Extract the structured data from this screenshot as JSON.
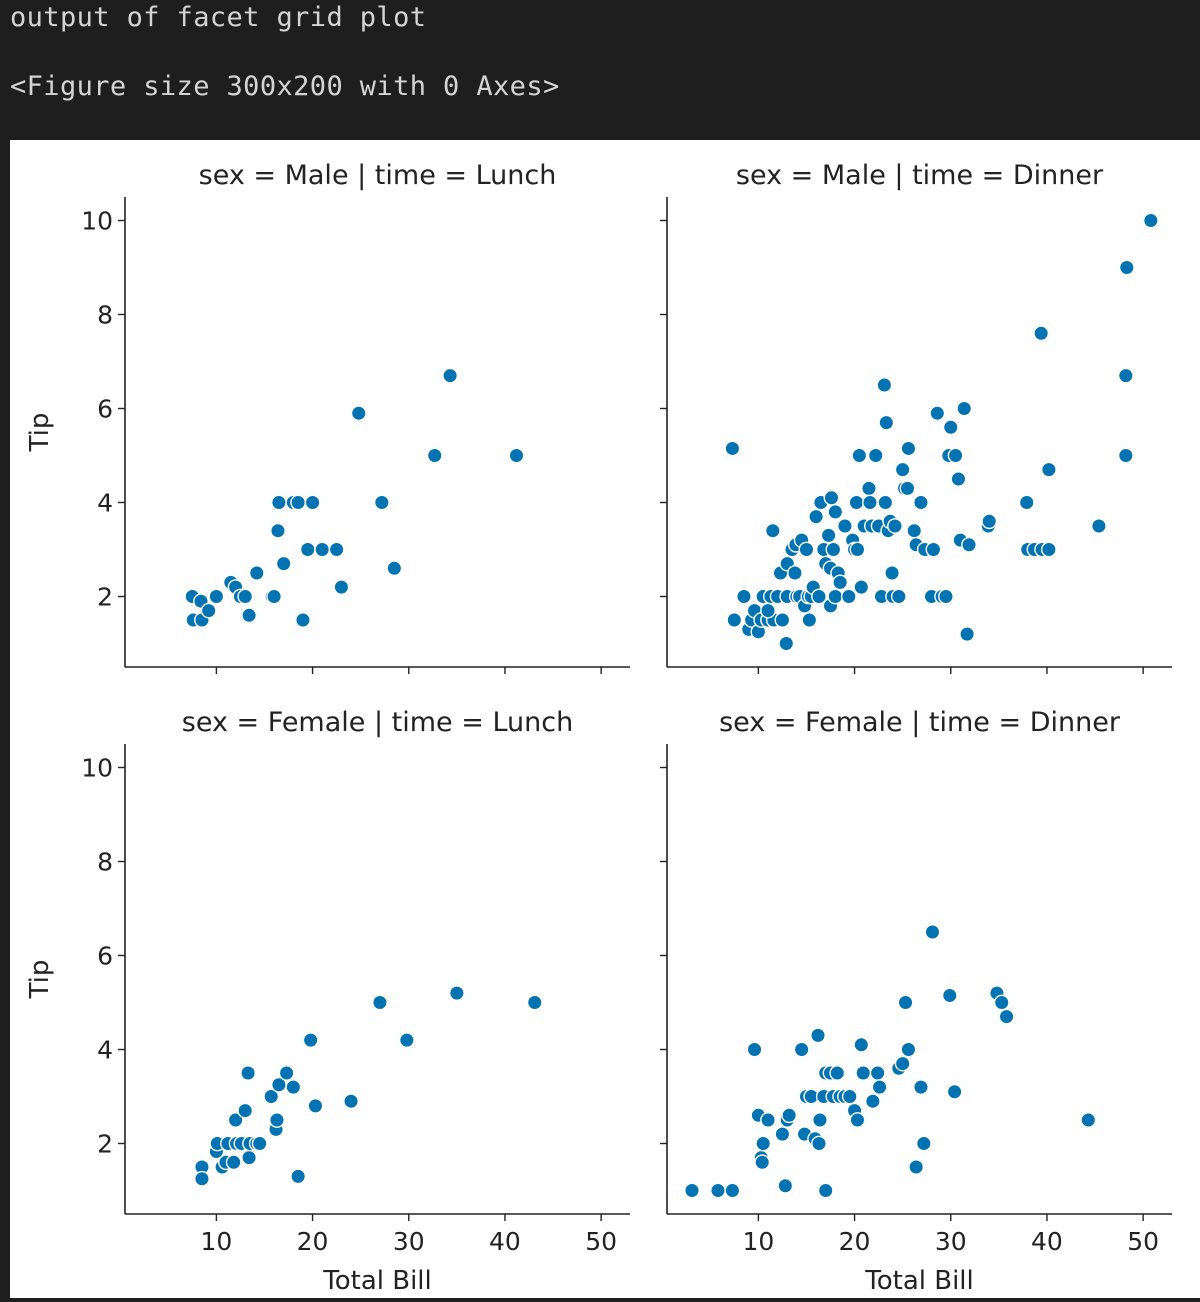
{
  "console": {
    "line1": "output of facet grid plot",
    "line2": "<Figure size 300x200 with 0 Axes>"
  },
  "chart_data": {
    "type": "scatter",
    "facet_rows": "sex",
    "facet_cols": "time",
    "xlabel": "Total Bill",
    "ylabel": "Tip",
    "xlim": [
      0.5,
      53
    ],
    "ylim": [
      0.5,
      10.5
    ],
    "xticks": [
      10,
      20,
      30,
      40,
      50
    ],
    "yticks": [
      2,
      4,
      6,
      8,
      10
    ],
    "marker_color": "#0173b2",
    "grid": false,
    "facets": [
      {
        "title": "sex = Male | time = Lunch",
        "points": [
          [
            7.5,
            2.0
          ],
          [
            7.6,
            1.5
          ],
          [
            8.4,
            1.9
          ],
          [
            8.5,
            1.5
          ],
          [
            9.2,
            1.7
          ],
          [
            10.0,
            2.0
          ],
          [
            11.5,
            2.3
          ],
          [
            12.0,
            2.2
          ],
          [
            12.5,
            2.0
          ],
          [
            13.0,
            2.0
          ],
          [
            13.4,
            1.6
          ],
          [
            14.2,
            2.5
          ],
          [
            15.8,
            2.0
          ],
          [
            16.0,
            2.0
          ],
          [
            16.4,
            3.4
          ],
          [
            16.5,
            4.0
          ],
          [
            17.0,
            2.7
          ],
          [
            18.0,
            4.0
          ],
          [
            18.5,
            4.0
          ],
          [
            19.0,
            1.5
          ],
          [
            19.5,
            3.0
          ],
          [
            20.0,
            4.0
          ],
          [
            21.0,
            3.0
          ],
          [
            22.5,
            3.0
          ],
          [
            23.0,
            2.2
          ],
          [
            24.8,
            5.9
          ],
          [
            27.2,
            4.0
          ],
          [
            28.5,
            2.6
          ],
          [
            32.7,
            5.0
          ],
          [
            34.3,
            6.7
          ],
          [
            41.2,
            5.0
          ]
        ]
      },
      {
        "title": "sex = Male | time = Dinner",
        "points": [
          [
            7.3,
            5.15
          ],
          [
            7.5,
            1.5
          ],
          [
            8.5,
            2.0
          ],
          [
            9.0,
            1.3
          ],
          [
            9.3,
            1.5
          ],
          [
            9.6,
            1.7
          ],
          [
            10.0,
            1.25
          ],
          [
            10.3,
            1.5
          ],
          [
            10.5,
            2.0
          ],
          [
            11.0,
            1.5
          ],
          [
            11.3,
            2.0
          ],
          [
            11.6,
            1.5
          ],
          [
            11.0,
            1.7
          ],
          [
            11.5,
            3.4
          ],
          [
            12.0,
            2.0
          ],
          [
            12.5,
            1.5
          ],
          [
            12.9,
            1.0
          ],
          [
            12.3,
            2.5
          ],
          [
            13.0,
            2.0
          ],
          [
            13.0,
            2.7
          ],
          [
            13.5,
            3.0
          ],
          [
            13.8,
            2.5
          ],
          [
            13.9,
            3.1
          ],
          [
            14.0,
            2.0
          ],
          [
            14.3,
            2.0
          ],
          [
            14.5,
            3.2
          ],
          [
            14.8,
            1.8
          ],
          [
            15.0,
            3.0
          ],
          [
            15.2,
            2.0
          ],
          [
            15.3,
            1.5
          ],
          [
            15.5,
            2.0
          ],
          [
            15.7,
            2.2
          ],
          [
            16.0,
            3.7
          ],
          [
            16.3,
            2.0
          ],
          [
            16.5,
            4.0
          ],
          [
            16.8,
            3.0
          ],
          [
            17.0,
            2.7
          ],
          [
            17.3,
            3.3
          ],
          [
            17.5,
            2.6
          ],
          [
            17.6,
            4.1
          ],
          [
            17.5,
            1.8
          ],
          [
            17.8,
            3.0
          ],
          [
            18.0,
            3.8
          ],
          [
            18.0,
            2.0
          ],
          [
            18.3,
            2.5
          ],
          [
            18.5,
            2.3
          ],
          [
            19.0,
            3.5
          ],
          [
            19.4,
            2.0
          ],
          [
            19.8,
            3.2
          ],
          [
            20.0,
            3.0
          ],
          [
            20.2,
            4.0
          ],
          [
            20.3,
            3.0
          ],
          [
            20.5,
            5.0
          ],
          [
            20.7,
            2.2
          ],
          [
            21.0,
            3.5
          ],
          [
            21.5,
            4.3
          ],
          [
            21.6,
            4.0
          ],
          [
            21.8,
            3.5
          ],
          [
            22.2,
            5.0
          ],
          [
            22.5,
            3.5
          ],
          [
            22.8,
            2.0
          ],
          [
            23.1,
            6.5
          ],
          [
            23.2,
            4.0
          ],
          [
            23.3,
            5.7
          ],
          [
            23.5,
            3.4
          ],
          [
            23.7,
            3.6
          ],
          [
            23.9,
            2.5
          ],
          [
            24.0,
            2.0
          ],
          [
            24.2,
            3.5
          ],
          [
            24.6,
            2.0
          ],
          [
            25.0,
            4.7
          ],
          [
            25.2,
            4.3
          ],
          [
            25.5,
            4.3
          ],
          [
            25.6,
            5.15
          ],
          [
            26.2,
            3.4
          ],
          [
            26.4,
            3.1
          ],
          [
            26.9,
            4.0
          ],
          [
            27.3,
            3.0
          ],
          [
            28.0,
            2.0
          ],
          [
            28.2,
            3.0
          ],
          [
            28.6,
            5.9
          ],
          [
            29.1,
            2.0
          ],
          [
            29.5,
            2.0
          ],
          [
            29.8,
            5.0
          ],
          [
            30.0,
            5.6
          ],
          [
            30.5,
            5.0
          ],
          [
            30.8,
            4.5
          ],
          [
            31.0,
            3.2
          ],
          [
            31.4,
            6.0
          ],
          [
            31.7,
            1.2
          ],
          [
            31.9,
            3.1
          ],
          [
            33.9,
            3.5
          ],
          [
            34.0,
            3.6
          ],
          [
            37.9,
            4.0
          ],
          [
            38.0,
            3.0
          ],
          [
            38.7,
            3.0
          ],
          [
            39.5,
            3.0
          ],
          [
            39.4,
            7.6
          ],
          [
            40.2,
            3.0
          ],
          [
            40.2,
            4.7
          ],
          [
            45.4,
            3.5
          ],
          [
            48.2,
            5.0
          ],
          [
            48.2,
            6.7
          ],
          [
            48.3,
            9.0
          ],
          [
            50.8,
            10.0
          ]
        ]
      },
      {
        "title": "sex = Female | time = Lunch",
        "points": [
          [
            8.5,
            1.5
          ],
          [
            8.5,
            1.25
          ],
          [
            10.0,
            1.83
          ],
          [
            10.1,
            2.0
          ],
          [
            10.6,
            1.5
          ],
          [
            11.0,
            1.6
          ],
          [
            11.2,
            2.0
          ],
          [
            11.8,
            1.6
          ],
          [
            12.0,
            2.5
          ],
          [
            12.1,
            2.0
          ],
          [
            12.6,
            2.0
          ],
          [
            13.0,
            2.7
          ],
          [
            13.3,
            3.5
          ],
          [
            13.4,
            1.7
          ],
          [
            13.5,
            2.0
          ],
          [
            14.2,
            2.0
          ],
          [
            14.5,
            2.0
          ],
          [
            15.7,
            3.0
          ],
          [
            16.2,
            2.3
          ],
          [
            16.3,
            2.5
          ],
          [
            16.5,
            3.25
          ],
          [
            17.3,
            3.5
          ],
          [
            18.0,
            3.2
          ],
          [
            18.5,
            1.3
          ],
          [
            19.8,
            4.2
          ],
          [
            20.3,
            2.8
          ],
          [
            24.0,
            2.9
          ],
          [
            27.0,
            5.0
          ],
          [
            29.8,
            4.2
          ],
          [
            35.0,
            5.2
          ],
          [
            43.1,
            5.0
          ]
        ]
      },
      {
        "title": "sex = Female | time = Dinner",
        "points": [
          [
            3.1,
            1.0
          ],
          [
            5.8,
            1.0
          ],
          [
            7.3,
            1.0
          ],
          [
            9.6,
            4.0
          ],
          [
            10.0,
            2.6
          ],
          [
            10.3,
            1.7
          ],
          [
            10.4,
            1.6
          ],
          [
            10.5,
            2.0
          ],
          [
            11.0,
            2.5
          ],
          [
            12.5,
            2.2
          ],
          [
            12.8,
            1.1
          ],
          [
            13.0,
            2.5
          ],
          [
            13.2,
            2.6
          ],
          [
            14.5,
            4.0
          ],
          [
            14.8,
            2.2
          ],
          [
            15.0,
            3.0
          ],
          [
            15.5,
            3.0
          ],
          [
            15.9,
            2.1
          ],
          [
            16.2,
            4.3
          ],
          [
            16.3,
            2.0
          ],
          [
            16.4,
            2.5
          ],
          [
            16.8,
            3.0
          ],
          [
            17.0,
            3.5
          ],
          [
            17.0,
            1.0
          ],
          [
            17.5,
            3.5
          ],
          [
            17.8,
            3.0
          ],
          [
            18.2,
            3.5
          ],
          [
            18.5,
            3.0
          ],
          [
            19.0,
            3.0
          ],
          [
            19.5,
            3.0
          ],
          [
            20.0,
            2.7
          ],
          [
            20.3,
            2.5
          ],
          [
            20.7,
            4.1
          ],
          [
            20.9,
            3.5
          ],
          [
            21.9,
            2.9
          ],
          [
            22.4,
            3.5
          ],
          [
            22.6,
            3.2
          ],
          [
            24.6,
            3.6
          ],
          [
            25.0,
            3.7
          ],
          [
            25.3,
            5.0
          ],
          [
            25.6,
            4.0
          ],
          [
            26.4,
            1.5
          ],
          [
            26.9,
            3.2
          ],
          [
            27.2,
            2.0
          ],
          [
            28.1,
            6.5
          ],
          [
            29.9,
            5.15
          ],
          [
            30.4,
            3.1
          ],
          [
            34.8,
            5.2
          ],
          [
            35.3,
            5.0
          ],
          [
            35.8,
            4.7
          ],
          [
            44.3,
            2.5
          ]
        ]
      }
    ]
  }
}
